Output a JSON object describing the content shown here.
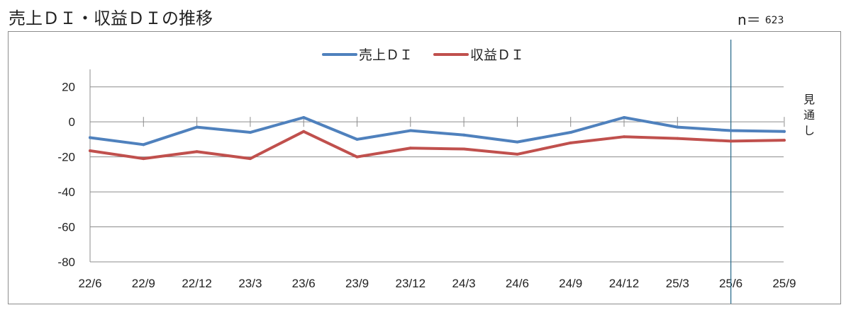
{
  "title": "売上ＤＩ・収益ＤＩの推移",
  "sample": {
    "label": "n＝",
    "value": "623"
  },
  "chart_data": {
    "type": "line",
    "categories": [
      "22/6",
      "22/9",
      "22/12",
      "23/3",
      "23/6",
      "23/9",
      "23/12",
      "24/3",
      "24/6",
      "24/9",
      "24/12",
      "25/3",
      "25/6",
      "25/9"
    ],
    "ylim": [
      -80,
      30
    ],
    "yticks": [
      20,
      0,
      -20,
      -40,
      -60,
      -80
    ],
    "grid": true,
    "legend_position": "top-center",
    "forecast_label": "見通し",
    "forecast_start": "25/6",
    "series": [
      {
        "name": "売上ＤＩ",
        "color": "#4f81bd",
        "values": [
          -9,
          -13,
          -3,
          -6,
          2.5,
          -10,
          -5,
          -7.5,
          -11.5,
          -6,
          2.5,
          -3,
          -5,
          -5.5
        ]
      },
      {
        "name": "収益ＤＩ",
        "color": "#c0504d",
        "values": [
          -16.5,
          -21,
          -17,
          -21,
          -5.5,
          -20,
          -15,
          -15.5,
          -18.5,
          -12,
          -8.5,
          -9.5,
          -11,
          -10.5
        ]
      }
    ]
  }
}
